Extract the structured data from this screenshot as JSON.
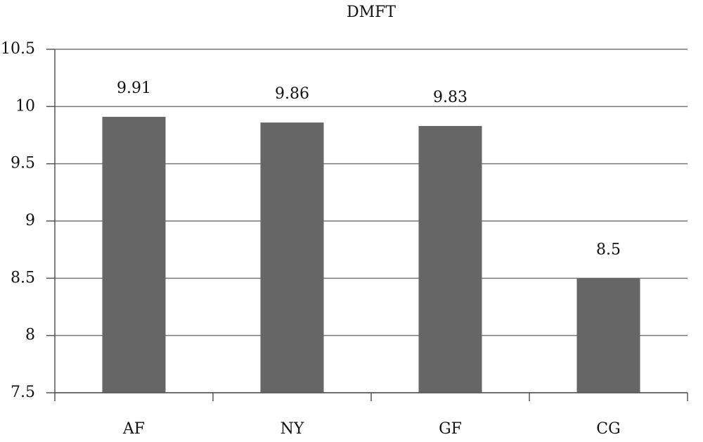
{
  "chart_data": {
    "type": "bar",
    "title": "DMFT",
    "categories": [
      "AF",
      "NY",
      "GF",
      "CG"
    ],
    "values": [
      9.91,
      9.86,
      9.83,
      8.5
    ],
    "color": "#666666",
    "ylim": [
      7.5,
      10.5
    ],
    "yticks": [
      7.5,
      8,
      8.5,
      9,
      9.5,
      10,
      10.5
    ],
    "grid": true
  }
}
